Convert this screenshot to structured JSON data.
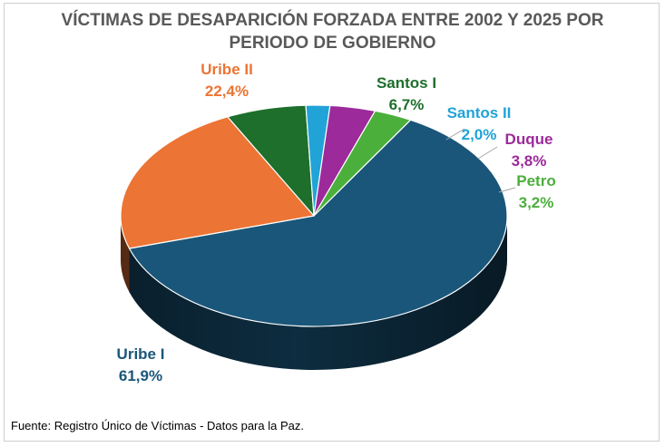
{
  "title_line1": "VÍCTIMAS DE DESAPARICIÓN FORZADA ENTRE 2002 Y 2025 POR",
  "title_line2": "PERIODO DE GOBIERNO",
  "source": "Fuente: Registro Único de Víctimas - Datos para la Paz.",
  "chart_data": {
    "type": "pie",
    "style": "3d",
    "title": "VÍCTIMAS DE DESAPARICIÓN FORZADA ENTRE 2002 Y 2025 POR PERIODO DE GOBIERNO",
    "categories": [
      "Uribe I",
      "Uribe II",
      "Santos I",
      "Santos II",
      "Duque",
      "Petro"
    ],
    "values": [
      61.9,
      22.4,
      6.7,
      2.0,
      3.8,
      3.2
    ],
    "value_labels": [
      "61,9%",
      "22,4%",
      "6,7%",
      "2,0%",
      "3,8%",
      "3,2%"
    ],
    "colors": [
      "#1A5679",
      "#EC7434",
      "#1D6F2B",
      "#21A3D8",
      "#9C2A9A",
      "#4BAF3B"
    ],
    "label_colors": [
      "#1A5679",
      "#EC7434",
      "#1D6F2B",
      "#21A3D8",
      "#9C2A9A",
      "#4BAF3B"
    ],
    "legend": "none"
  }
}
